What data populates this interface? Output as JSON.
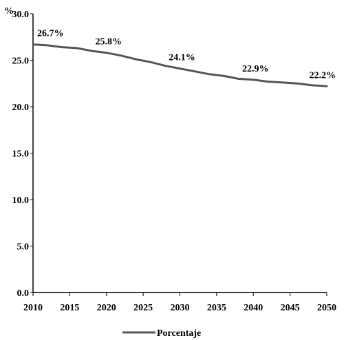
{
  "chart_data": {
    "type": "line",
    "ylabel": "%",
    "ylim": [
      0,
      30
    ],
    "y_ticks": [
      "0.0",
      "5.0",
      "10.0",
      "15.0",
      "20.0",
      "25.0",
      "30.0"
    ],
    "x_ticks": [
      "2010",
      "2015",
      "2020",
      "2025",
      "2030",
      "2035",
      "2040",
      "2045",
      "2050"
    ],
    "xlim": [
      2010,
      2050
    ],
    "grid": false,
    "legend_position": "bottom",
    "series": [
      {
        "name": "Porcentaje",
        "color": "#555555",
        "x": [
          2010,
          2012,
          2014,
          2016,
          2018,
          2020,
          2022,
          2024,
          2026,
          2028,
          2030,
          2032,
          2034,
          2036,
          2038,
          2040,
          2042,
          2044,
          2046,
          2048,
          2050
        ],
        "values": [
          26.7,
          26.6,
          26.4,
          26.3,
          26.0,
          25.8,
          25.5,
          25.1,
          24.8,
          24.4,
          24.1,
          23.8,
          23.5,
          23.3,
          23.0,
          22.9,
          22.7,
          22.6,
          22.5,
          22.3,
          22.2
        ]
      }
    ],
    "data_labels": [
      {
        "x": 2010,
        "y": 26.7,
        "text": "26.7%"
      },
      {
        "x": 2020,
        "y": 25.8,
        "text": "25.8%"
      },
      {
        "x": 2030,
        "y": 24.1,
        "text": "24.1%"
      },
      {
        "x": 2040,
        "y": 22.9,
        "text": "22.9%"
      },
      {
        "x": 2050,
        "y": 22.2,
        "text": "22.2%"
      }
    ]
  }
}
